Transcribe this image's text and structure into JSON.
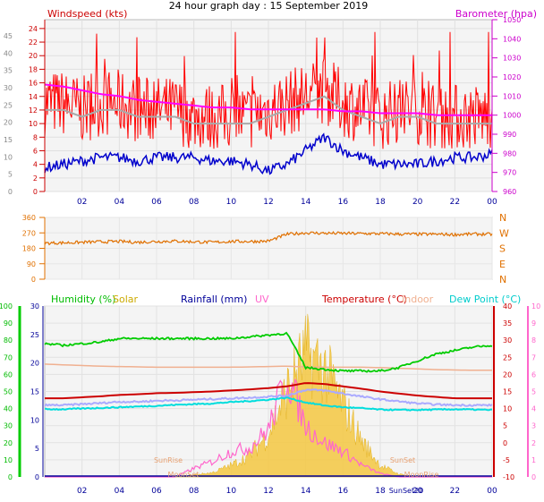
{
  "title": "24 hour graph day : 15 September 2019",
  "colors": {
    "wind": "#ff0000",
    "gust": "#ff0000",
    "avg": "#0000cc",
    "baro": "#ff00ff",
    "trend": "#aaaaaa",
    "dir": "#e07000",
    "humidity": "#00cc00",
    "solar": "#ccaa00",
    "rain": "#000099",
    "uv": "#ff66cc",
    "temp": "#cc0000",
    "indoor": "#f0b090",
    "dew": "#00dddd",
    "plotbg": "#f4f4f4",
    "frame": "#cccccc"
  },
  "chart_data": [
    {
      "type": "line",
      "panel": "wind-baro",
      "title": "24 hour graph day : 15 September 2019",
      "left_axis_label": "Windspeed (kts)",
      "right_axis_label": "Barometer (hpa)",
      "x_ticks": [
        "02",
        "04",
        "06",
        "08",
        "10",
        "12",
        "14",
        "16",
        "18",
        "20",
        "22",
        "00"
      ],
      "left_outer_ticks": [
        "0",
        "5",
        "10",
        "15",
        "20",
        "25",
        "30",
        "35",
        "40",
        "45"
      ],
      "left_inner_ticks": [
        "0",
        "2",
        "4",
        "6",
        "8",
        "10",
        "12",
        "14",
        "16",
        "18",
        "20",
        "22",
        "24"
      ],
      "right_ticks": [
        "960",
        "970",
        "980",
        "990",
        "1000",
        "1010",
        "1020",
        "1030",
        "1040",
        "1050"
      ],
      "ylim_kts": [
        0,
        25.3
      ],
      "ylim_hpa": [
        960,
        1050
      ],
      "x_hours": [
        0,
        1,
        2,
        3,
        4,
        5,
        6,
        7,
        8,
        9,
        10,
        11,
        12,
        13,
        14,
        15,
        16,
        17,
        18,
        19,
        20,
        21,
        22,
        23,
        24
      ],
      "series": [
        {
          "name": "gust",
          "values": [
            13,
            13,
            12,
            13,
            13,
            12,
            12,
            12,
            11,
            11,
            11,
            11,
            12,
            13,
            14,
            15,
            13,
            12,
            11,
            12,
            12,
            11,
            11,
            11,
            11
          ]
        },
        {
          "name": "average",
          "values": [
            3.5,
            4,
            4.5,
            5,
            5,
            4.5,
            5,
            5,
            5,
            4.5,
            4.5,
            4,
            3,
            4,
            6,
            8,
            6,
            5,
            4,
            4,
            4,
            4.5,
            5,
            5,
            5.5
          ]
        },
        {
          "name": "barometer",
          "values": [
            1016,
            1015,
            1013,
            1011,
            1010,
            1008,
            1007,
            1006,
            1005,
            1004,
            1004,
            1003,
            1003,
            1003,
            1003,
            1003,
            1002,
            1002,
            1001,
            1001,
            1001,
            1000,
            1000,
            1000,
            1000
          ]
        }
      ]
    },
    {
      "type": "line",
      "panel": "direction",
      "right_compass_labels": [
        "N",
        "W",
        "S",
        "E",
        "N"
      ],
      "left_ticks": [
        "0",
        "90",
        "180",
        "270",
        "360"
      ],
      "ylim": [
        0,
        360
      ],
      "x_hours": [
        0,
        1,
        2,
        3,
        4,
        5,
        6,
        7,
        8,
        9,
        10,
        11,
        12,
        13,
        14,
        15,
        16,
        17,
        18,
        19,
        20,
        21,
        22,
        23,
        24
      ],
      "series": [
        {
          "name": "direction",
          "values": [
            210,
            212,
            215,
            218,
            220,
            215,
            220,
            222,
            218,
            215,
            220,
            220,
            222,
            262,
            270,
            268,
            267,
            266,
            265,
            263,
            262,
            262,
            260,
            263,
            262
          ]
        }
      ]
    },
    {
      "type": "line",
      "panel": "temp-hum",
      "labels": {
        "humidity": "Humidity (%)",
        "solar": "Solar",
        "rain": "Rainfall (mm)",
        "uv": "UV",
        "temp": "Temperature (°C)",
        "indoor": "Indoor",
        "dew": "Dew Point (°C)"
      },
      "x_ticks": [
        "02",
        "04",
        "06",
        "08",
        "10",
        "12",
        "14",
        "16",
        "18",
        "20",
        "22",
        "00"
      ],
      "hum_ticks": [
        "0",
        "10",
        "20",
        "30",
        "40",
        "50",
        "60",
        "70",
        "80",
        "90",
        "100"
      ],
      "rain_ticks": [
        "0",
        "5",
        "10",
        "15",
        "20",
        "25",
        "30"
      ],
      "temp_ticks": [
        "-10",
        "-5",
        "0",
        "5",
        "10",
        "15",
        "20",
        "25",
        "30",
        "35",
        "40"
      ],
      "uv_ticks": [
        "0",
        "1",
        "2",
        "3",
        "4",
        "5",
        "6",
        "7",
        "8",
        "9",
        "10"
      ],
      "annotations": [
        "SunRise",
        "MoonSet",
        "SunSet",
        "MoonRise",
        "SunSet20"
      ],
      "x_hours": [
        0,
        1,
        2,
        3,
        4,
        5,
        6,
        7,
        8,
        9,
        10,
        11,
        12,
        13,
        14,
        15,
        16,
        17,
        18,
        19,
        20,
        21,
        22,
        23,
        24
      ],
      "series": [
        {
          "name": "humidity",
          "values": [
            78,
            77,
            78,
            79,
            81,
            81,
            81,
            81,
            81,
            81,
            81,
            82,
            83,
            84,
            64,
            63,
            62,
            62,
            62,
            64,
            68,
            72,
            74,
            76,
            77
          ]
        },
        {
          "name": "temperature",
          "values": [
            13,
            13,
            13.3,
            13.6,
            14,
            14.2,
            14.5,
            14.6,
            14.8,
            15,
            15.3,
            15.6,
            16,
            16.5,
            17.5,
            17.2,
            16.5,
            15.8,
            15,
            14.4,
            13.8,
            13.4,
            13,
            13,
            13
          ]
        },
        {
          "name": "indoor",
          "values": [
            23,
            22.8,
            22.6,
            22.4,
            22.3,
            22.2,
            22.1,
            22.1,
            22.1,
            22.1,
            22.1,
            22.2,
            22.3,
            22.4,
            22.2,
            22.1,
            22.1,
            22.1,
            22,
            21.8,
            21.6,
            21.4,
            21.3,
            21.2,
            21.2
          ]
        },
        {
          "name": "dew_point",
          "values": [
            9.8,
            9.8,
            10,
            10.2,
            10.4,
            10.6,
            10.8,
            11.1,
            11.3,
            11.5,
            11.9,
            12.2,
            12.6,
            13.2,
            11.8,
            10.9,
            10.4,
            10.1,
            9.7,
            9.6,
            9.6,
            9.7,
            9.8,
            9.7,
            9.6
          ]
        },
        {
          "name": "feels_like",
          "values": [
            11,
            11,
            11.3,
            11.6,
            12,
            12,
            12.3,
            12.4,
            12.6,
            12.8,
            13,
            13.2,
            13.5,
            13.8,
            15.5,
            15.3,
            14.4,
            13.5,
            12.7,
            12.1,
            11.5,
            11.2,
            11,
            11,
            11
          ]
        },
        {
          "name": "solar",
          "values": [
            0,
            0,
            0,
            0,
            0,
            0,
            0,
            0,
            1.5,
            3,
            8,
            15,
            30,
            60,
            85,
            75,
            50,
            25,
            8,
            2,
            0,
            0,
            0,
            0,
            0
          ]
        },
        {
          "name": "uv",
          "values": [
            0,
            0,
            0,
            0,
            0,
            0,
            0,
            0,
            0.5,
            0.9,
            1.5,
            1.7,
            2.8,
            6,
            3,
            2,
            1.5,
            0.7,
            0.2,
            0,
            0,
            0,
            0,
            0,
            0
          ]
        },
        {
          "name": "rainfall",
          "values": [
            0,
            0,
            0,
            0,
            0,
            0,
            0,
            0,
            0,
            0,
            0,
            0,
            0,
            0,
            0,
            0,
            0,
            0,
            0,
            0,
            0,
            0,
            0,
            0,
            0
          ]
        }
      ]
    }
  ]
}
